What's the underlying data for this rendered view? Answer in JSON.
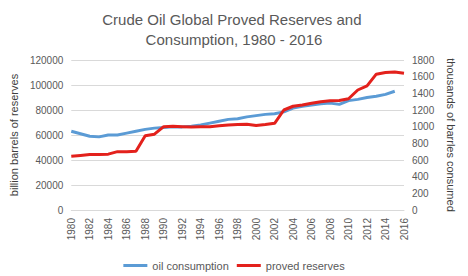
{
  "chart_data": {
    "type": "line",
    "title": "Crude Oil Global Proved Reserves and Consumption, 1980 - 2016",
    "y_label": "billion barrels of reserves",
    "y2_label": "thousands of barrles consumed",
    "categories": [
      "1980",
      null,
      "1982",
      null,
      "1984",
      null,
      "1986",
      null,
      "1988",
      null,
      "1990",
      null,
      "1992",
      null,
      "1994",
      null,
      "1996",
      null,
      "1998",
      null,
      "2000",
      null,
      "2002",
      null,
      "2004",
      null,
      "2006",
      null,
      "2008",
      null,
      "2010",
      null,
      "2012",
      null,
      "2014",
      null,
      "2016"
    ],
    "series": [
      {
        "name": "oil consumption",
        "color": "#5b9bd5",
        "axis": "y",
        "values": [
          63000,
          61000,
          59000,
          58500,
          60000,
          60000,
          61500,
          63000,
          64500,
          65500,
          66000,
          66500,
          66500,
          67000,
          68000,
          69500,
          71000,
          72500,
          73000,
          74500,
          75500,
          76500,
          77000,
          78500,
          81500,
          83000,
          84000,
          85000,
          85500,
          84500,
          87500,
          88500,
          90000,
          91000,
          92500,
          95000,
          null
        ]
      },
      {
        "name": "proved reserves",
        "color": "#e3211c",
        "axis": "y2",
        "values": [
          645,
          655,
          665,
          665,
          670,
          700,
          700,
          705,
          890,
          910,
          1000,
          1005,
          1000,
          995,
          1000,
          1000,
          1010,
          1020,
          1025,
          1030,
          1015,
          1025,
          1040,
          1200,
          1245,
          1260,
          1280,
          1300,
          1310,
          1315,
          1335,
          1440,
          1490,
          1630,
          1650,
          1655,
          1640
        ]
      }
    ],
    "ylim": [
      0,
      120000
    ],
    "yticks": [
      0,
      20000,
      40000,
      60000,
      80000,
      100000,
      120000
    ],
    "y2lim": [
      0,
      1800
    ],
    "y2ticks": [
      0,
      200,
      400,
      600,
      800,
      1000,
      1200,
      1400,
      1600,
      1800
    ],
    "grid": true,
    "legend": "bottom"
  }
}
